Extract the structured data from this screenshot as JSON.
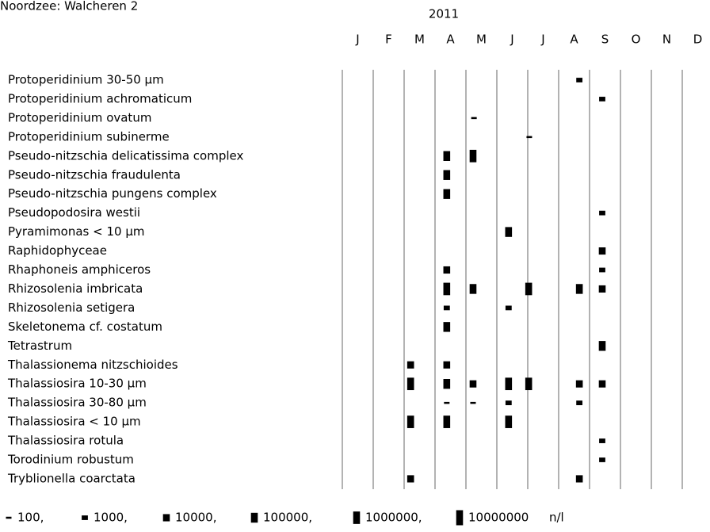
{
  "chart_data": {
    "type": "occurrence",
    "title": "Noordzee: Walcheren 2",
    "subtitle": "2011",
    "categories": [
      "J",
      "F",
      "M",
      "A",
      "M",
      "J",
      "J",
      "A",
      "S",
      "O",
      "N",
      "D"
    ],
    "xlim": [
      0,
      12
    ],
    "color": "#000000",
    "rows": [
      {
        "name": "Protoperidinium 30-50 µm",
        "x": [
          7.67
        ],
        "values": [
          1000
        ]
      },
      {
        "name": "Protoperidinium achromaticum",
        "x": [
          8.41
        ],
        "values": [
          1000
        ]
      },
      {
        "name": "Protoperidinium ovatum",
        "x": [
          4.26
        ],
        "values": [
          100
        ]
      },
      {
        "name": "Protoperidinium subinerme",
        "x": [
          6.05
        ],
        "values": [
          100
        ]
      },
      {
        "name": "Pseudo-nitzschia delicatissima complex",
        "x": [
          3.38,
          4.23
        ],
        "values": [
          100000,
          1000000
        ]
      },
      {
        "name": "Pseudo-nitzschia fraudulenta",
        "x": [
          3.38
        ],
        "values": [
          100000
        ]
      },
      {
        "name": "Pseudo-nitzschia pungens complex",
        "x": [
          3.38
        ],
        "values": [
          100000
        ]
      },
      {
        "name": "Pseudopodosira westii",
        "x": [
          8.41
        ],
        "values": [
          1000
        ]
      },
      {
        "name": "Pyramimonas < 10 µm",
        "x": [
          5.38
        ],
        "values": [
          100000
        ]
      },
      {
        "name": "Raphidophyceae",
        "x": [
          8.41
        ],
        "values": [
          10000
        ]
      },
      {
        "name": "Rhaphoneis amphiceros",
        "x": [
          3.38,
          8.41
        ],
        "values": [
          10000,
          1000
        ]
      },
      {
        "name": "Rhizosolenia imbricata",
        "x": [
          3.38,
          4.23,
          6.03,
          7.67,
          8.41
        ],
        "values": [
          1000000,
          100000,
          1000000,
          100000,
          10000
        ]
      },
      {
        "name": "Rhizosolenia setigera",
        "x": [
          3.38,
          5.38
        ],
        "values": [
          1000,
          1000
        ]
      },
      {
        "name": "Skeletonema cf. costatum",
        "x": [
          3.38
        ],
        "values": [
          100000
        ]
      },
      {
        "name": "Tetrastrum",
        "x": [
          8.41
        ],
        "values": [
          100000
        ]
      },
      {
        "name": "Thalassionema nitzschioides",
        "x": [
          2.21,
          3.38
        ],
        "values": [
          10000,
          10000
        ]
      },
      {
        "name": "Thalassiosira 10-30 µm",
        "x": [
          2.21,
          3.38,
          4.23,
          5.38,
          6.03,
          7.67,
          8.41
        ],
        "values": [
          1000000,
          100000,
          10000,
          1000000,
          1000000,
          10000,
          10000
        ]
      },
      {
        "name": "Thalassiosira 30-80 µm",
        "x": [
          3.38,
          4.23,
          5.38,
          7.67
        ],
        "values": [
          100,
          100,
          1000,
          1000
        ]
      },
      {
        "name": "Thalassiosira < 10 µm",
        "x": [
          2.21,
          3.38,
          5.38
        ],
        "values": [
          1000000,
          1000000,
          1000000
        ]
      },
      {
        "name": "Thalassiosira rotula",
        "x": [
          8.41
        ],
        "values": [
          1000
        ]
      },
      {
        "name": "Torodinium robustum",
        "x": [
          8.41
        ],
        "values": [
          1000
        ]
      },
      {
        "name": "Tryblionella coarctata",
        "x": [
          2.21,
          7.67
        ],
        "values": [
          10000,
          10000
        ]
      }
    ],
    "legend": [
      {
        "value": 100,
        "label": "100,"
      },
      {
        "value": 1000,
        "label": "1000,"
      },
      {
        "value": 10000,
        "label": "10000,"
      },
      {
        "value": 100000,
        "label": "100000,"
      },
      {
        "value": 1000000,
        "label": "1000000,"
      },
      {
        "value": 10000000,
        "label": "10000000"
      }
    ],
    "unit": "n/l"
  }
}
